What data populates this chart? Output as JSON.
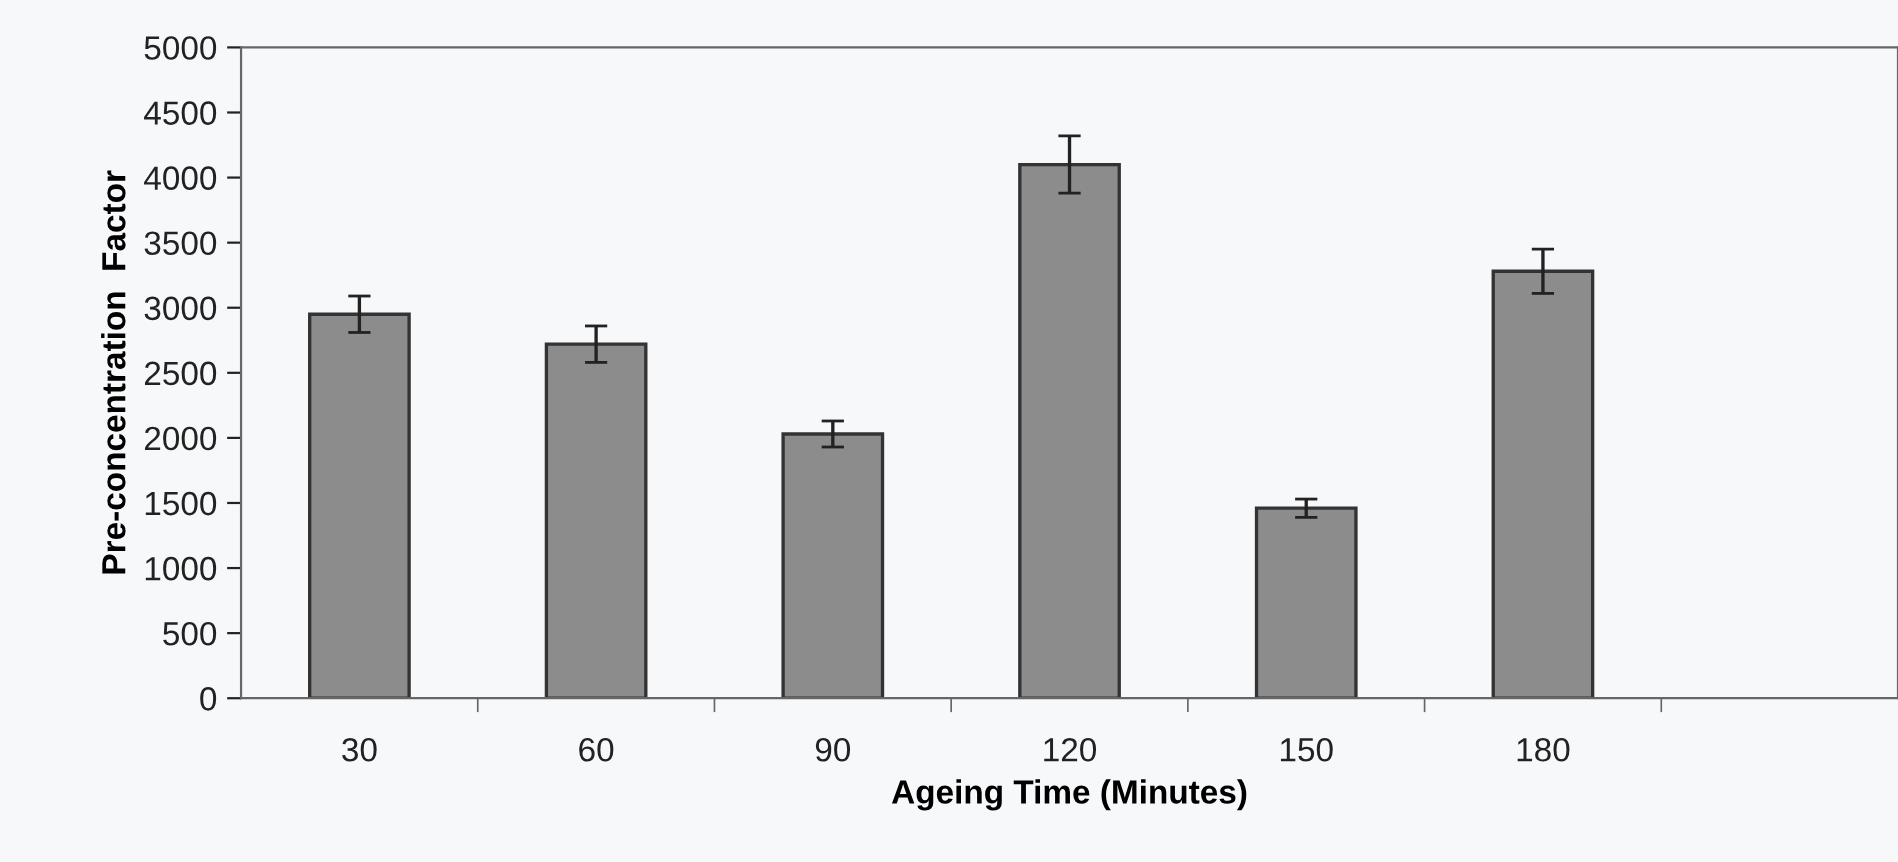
{
  "chart_data": {
    "type": "bar",
    "xlabel": "Ageing Time (Minutes)",
    "ylabel": "Pre-concentration  Factor",
    "categories": [
      "30",
      "60",
      "90",
      "120",
      "150",
      "180",
      null
    ],
    "values": [
      2950,
      2720,
      2030,
      4100,
      1460,
      3280,
      null
    ],
    "errors": [
      140,
      140,
      100,
      220,
      70,
      170,
      null
    ],
    "color": "#8c8c8c",
    "ylim": [
      0,
      5000
    ],
    "yticks": [
      0,
      500,
      1000,
      1500,
      2000,
      2500,
      3000,
      3500,
      4000,
      4500,
      5000
    ],
    "grid": false
  }
}
